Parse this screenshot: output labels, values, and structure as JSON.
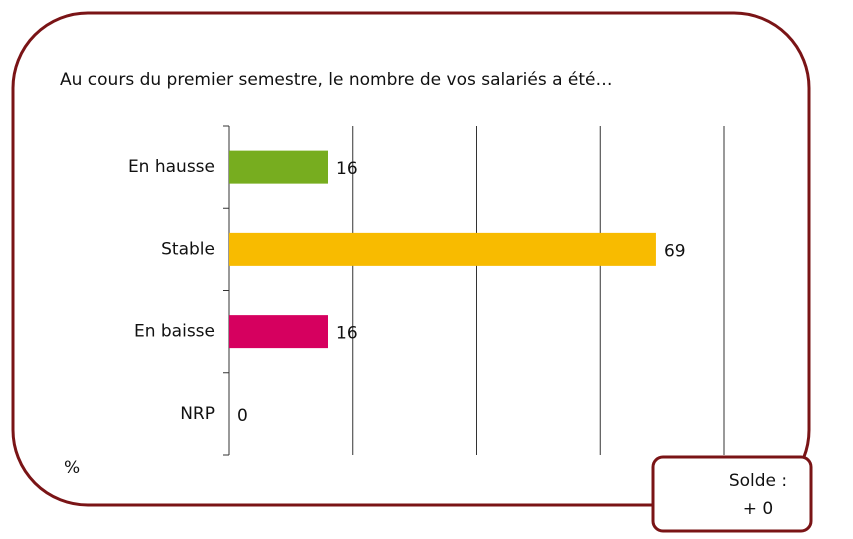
{
  "chart_data": {
    "type": "bar",
    "orientation": "horizontal",
    "title": "Au cours du premier semestre, le nombre de vos salariés a été…",
    "categories": [
      "En hausse",
      "Stable",
      "En baisse",
      "NRP"
    ],
    "values": [
      16,
      69,
      16,
      0
    ],
    "colors": [
      "#77ad1f",
      "#f8bb00",
      "#d6005f",
      "#888888"
    ],
    "xlim": [
      0,
      80
    ],
    "xticks": [
      0,
      20,
      40,
      60,
      80
    ],
    "grid": true,
    "unit_label": "%",
    "annotation": [
      "Solde :",
      "+ 0"
    ]
  }
}
